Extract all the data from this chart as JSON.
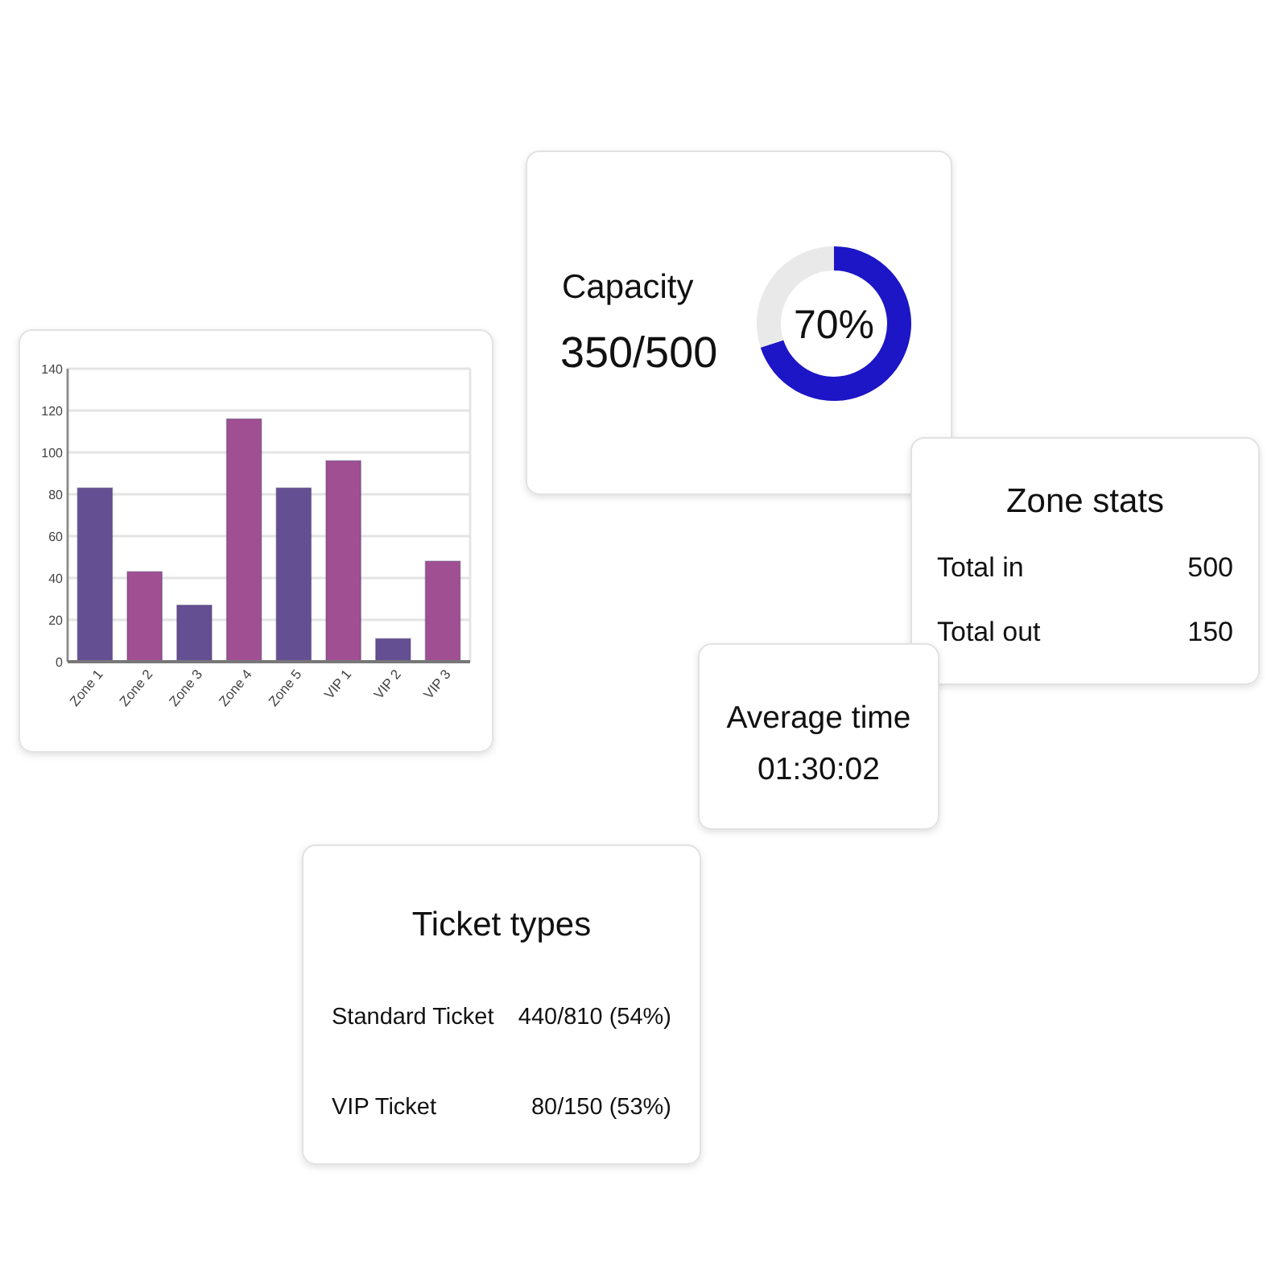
{
  "chart_data": [
    {
      "type": "donut",
      "title": "Capacity",
      "subtitle": "350/500",
      "categories": [
        null,
        null
      ],
      "values": [
        70,
        30
      ],
      "colors": [
        "#1c16c6",
        "#e9e9e9"
      ],
      "value_labels": [
        "70%",
        null
      ]
    },
    {
      "type": "bar",
      "categories": [
        "Zone 1",
        "Zone 2",
        "Zone 3",
        "Zone 4",
        "Zone 5",
        "VIP 1",
        "VIP 2",
        "VIP 3"
      ],
      "values": [
        83,
        43,
        27,
        116,
        83,
        96,
        11,
        48
      ],
      "colors": [
        "#654f93",
        "#a04f93",
        "#654f93",
        "#a04f93",
        "#654f93",
        "#a04f93",
        "#654f93",
        "#a04f93"
      ],
      "ylim": [
        0,
        140
      ],
      "yticks": [
        0,
        20,
        40,
        60,
        80,
        100,
        120,
        140
      ],
      "grid": "y"
    },
    {
      "type": "other",
      "title": "Zone stats",
      "categories": [
        "Total in",
        "Total out"
      ],
      "values": [
        500,
        150
      ],
      "data_labels": true
    },
    {
      "type": "other",
      "title": "Average time",
      "annotations": [
        "01:30:02"
      ]
    },
    {
      "type": "other",
      "title": "Ticket types",
      "categories": [
        "Standard Ticket",
        "VIP Ticket"
      ],
      "value_labels": [
        "440/810 (54%)",
        "80/150 (53%)"
      ]
    }
  ]
}
